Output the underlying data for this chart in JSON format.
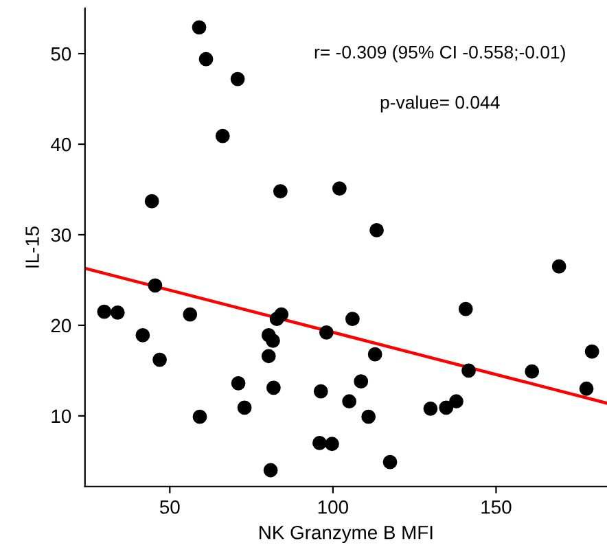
{
  "chart_data": {
    "type": "scatter",
    "xlabel": "NK Granzyme B MFI",
    "ylabel": "IL-15",
    "xlim": [
      24,
      184
    ],
    "ylim": [
      2.2,
      55
    ],
    "xticks": [
      50,
      100,
      150
    ],
    "yticks": [
      10,
      20,
      30,
      40,
      50
    ],
    "grid": false,
    "annotations": [
      "r= -0.309 (95% CI -0.558;-0.01)",
      "p-value= 0.044"
    ],
    "series": [
      {
        "color": "#000000",
        "marker": "circle",
        "x": [
          59.0,
          61.1,
          70.8,
          66.2,
          44.5,
          83.9,
          102.0,
          113.4,
          169.3,
          45.5,
          29.9,
          34.0,
          56.2,
          41.7,
          46.9,
          84.2,
          82.8,
          80.3,
          81.6,
          80.3,
          81.8,
          71.0,
          72.9,
          59.2,
          80.9,
          98.0,
          96.3,
          95.9,
          99.7,
          106.0,
          112.9,
          108.6,
          105.0,
          110.9,
          117.5,
          129.9,
          134.7,
          137.8,
          140.7,
          141.6,
          161.0,
          179.4,
          177.7
        ],
        "values": [
          52.9,
          49.4,
          47.2,
          40.9,
          33.7,
          34.8,
          35.1,
          30.5,
          26.5,
          24.4,
          21.5,
          21.4,
          21.2,
          18.9,
          16.2,
          21.2,
          20.7,
          18.9,
          18.3,
          16.6,
          13.1,
          13.6,
          10.9,
          9.9,
          4.0,
          19.2,
          12.7,
          7.0,
          6.9,
          20.7,
          16.8,
          13.8,
          11.6,
          9.9,
          4.9,
          10.8,
          10.9,
          11.6,
          21.8,
          15.0,
          14.9,
          17.1,
          13.0
        ]
      },
      {
        "type": "line",
        "color": "#ff0000",
        "marker": "none",
        "x": [
          24,
          184
        ],
        "values": [
          26.3,
          11.4
        ]
      }
    ]
  }
}
